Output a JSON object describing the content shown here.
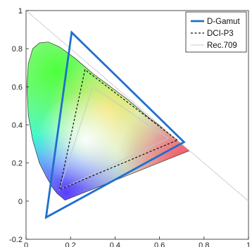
{
  "chart_data": {
    "type": "line",
    "title": "",
    "xlabel": "",
    "ylabel": "",
    "xlim": [
      0,
      1
    ],
    "ylim": [
      -0.2,
      1
    ],
    "x_ticks": [
      0,
      0.2,
      0.4,
      0.6,
      0.8,
      1
    ],
    "x_tick_labels": [
      "0",
      "0.2",
      "0.4",
      "0.6",
      "0.8",
      "1"
    ],
    "y_ticks": [
      -0.2,
      0,
      0.2,
      0.4,
      0.6,
      0.8,
      1
    ],
    "y_tick_labels": [
      "-0.2",
      "0",
      "0.2",
      "0.4",
      "0.6",
      "0.8",
      "1"
    ],
    "grid": false,
    "legend_position": "top-right",
    "background": {
      "name": "spectral-locus",
      "points": [
        {
          "x": 0.175,
          "y": 0.005
        },
        {
          "x": 0.17,
          "y": 0.01
        },
        {
          "x": 0.16,
          "y": 0.02
        },
        {
          "x": 0.14,
          "y": 0.04
        },
        {
          "x": 0.12,
          "y": 0.07
        },
        {
          "x": 0.09,
          "y": 0.13
        },
        {
          "x": 0.06,
          "y": 0.2
        },
        {
          "x": 0.03,
          "y": 0.32
        },
        {
          "x": 0.01,
          "y": 0.45
        },
        {
          "x": 0.004,
          "y": 0.6
        },
        {
          "x": 0.01,
          "y": 0.72
        },
        {
          "x": 0.03,
          "y": 0.8
        },
        {
          "x": 0.06,
          "y": 0.83
        },
        {
          "x": 0.1,
          "y": 0.835
        },
        {
          "x": 0.15,
          "y": 0.81
        },
        {
          "x": 0.22,
          "y": 0.75
        },
        {
          "x": 0.3,
          "y": 0.67
        },
        {
          "x": 0.38,
          "y": 0.6
        },
        {
          "x": 0.46,
          "y": 0.53
        },
        {
          "x": 0.55,
          "y": 0.44
        },
        {
          "x": 0.63,
          "y": 0.37
        },
        {
          "x": 0.735,
          "y": 0.265
        }
      ]
    },
    "reference_line": {
      "points": [
        {
          "x": 0,
          "y": 1
        },
        {
          "x": 1,
          "y": 0
        }
      ]
    },
    "series": [
      {
        "name": "D-Gamut",
        "color": "#1f6fcc",
        "style": "solid",
        "points": [
          {
            "x": 0.71,
            "y": 0.31
          },
          {
            "x": 0.205,
            "y": 0.885
          },
          {
            "x": 0.09,
            "y": -0.085
          }
        ]
      },
      {
        "name": "DCI-P3",
        "color": "#111111",
        "style": "dashed",
        "points": [
          {
            "x": 0.68,
            "y": 0.32
          },
          {
            "x": 0.265,
            "y": 0.69
          },
          {
            "x": 0.15,
            "y": 0.06
          }
        ]
      },
      {
        "name": "Rec.709",
        "color": "#c8c8c8",
        "style": "solid",
        "points": [
          {
            "x": 0.64,
            "y": 0.33
          },
          {
            "x": 0.3,
            "y": 0.6
          },
          {
            "x": 0.15,
            "y": 0.06
          }
        ]
      }
    ]
  }
}
